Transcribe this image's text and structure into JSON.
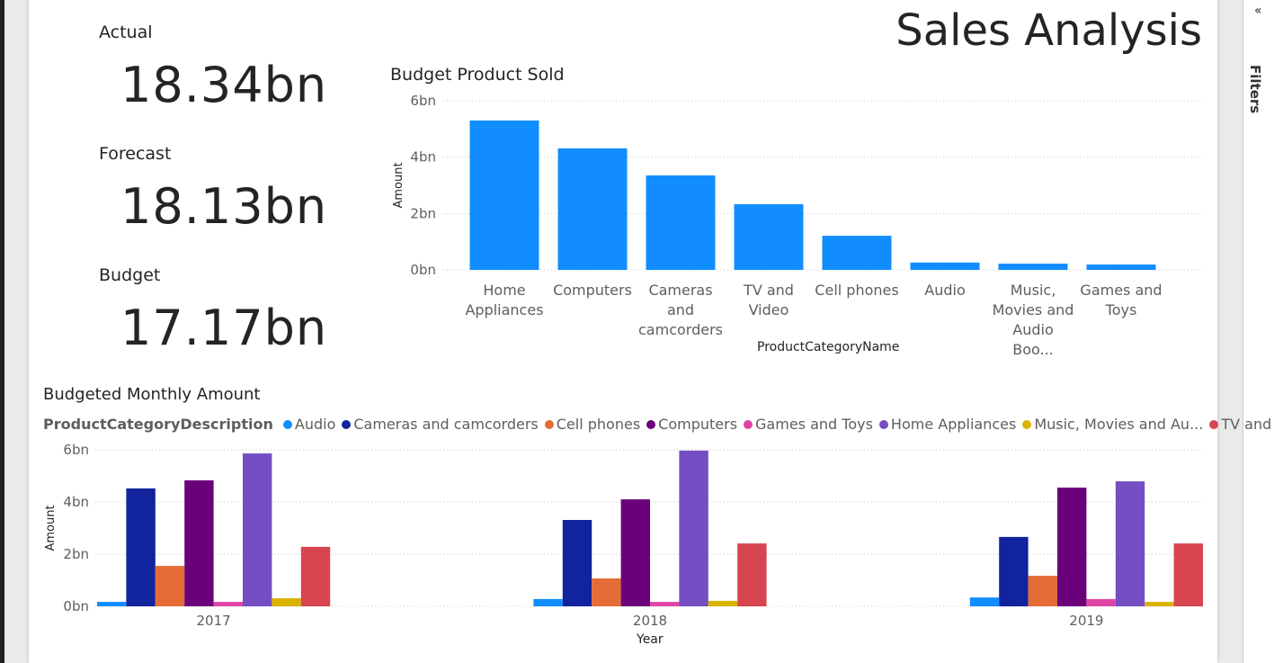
{
  "page_title": "Sales Analysis",
  "filters_label": "Filters",
  "cards": [
    {
      "label": "Actual",
      "value": "18.34bn"
    },
    {
      "label": "Forecast",
      "value": "18.13bn"
    },
    {
      "label": "Budget",
      "value": "17.17bn"
    }
  ],
  "chart_data": [
    {
      "type": "bar",
      "title": "Budget Product Sold",
      "x_label": "ProductCategoryName",
      "y_label": "Amount",
      "categories": [
        "Home Appliances",
        "Computers",
        "Cameras and camcorders",
        "TV and Video",
        "Cell phones",
        "Audio",
        "Music, Movies and Audio Boo...",
        "Games and Toys"
      ],
      "values": [
        5.3,
        4.31,
        3.35,
        2.33,
        1.21,
        0.26,
        0.22,
        0.19
      ],
      "color": "#118DFF",
      "ylim": [
        0,
        6
      ],
      "yticks": [
        {
          "value": 0,
          "label": "0bn"
        },
        {
          "value": 2,
          "label": "2bn"
        },
        {
          "value": 4,
          "label": "4bn"
        },
        {
          "value": 6,
          "label": "6bn"
        }
      ],
      "grid": true
    },
    {
      "type": "grouped_bar",
      "title": "Budgeted Monthly Amount",
      "x_label": "Year",
      "y_label": "Amount",
      "legend_title": "ProductCategoryDescription",
      "categories": [
        "2017",
        "2018",
        "2019"
      ],
      "series": [
        {
          "name": "Audio",
          "color": "#118DFF",
          "values": [
            0.17,
            0.28,
            0.34
          ]
        },
        {
          "name": "Cameras and camcorders",
          "color": "#12239E",
          "values": [
            4.52,
            3.31,
            2.66
          ]
        },
        {
          "name": "Cell phones",
          "color": "#E66C37",
          "values": [
            1.55,
            1.07,
            1.17
          ]
        },
        {
          "name": "Computers",
          "color": "#6B007B",
          "values": [
            4.83,
            4.1,
            4.55
          ]
        },
        {
          "name": "Games and Toys",
          "color": "#E044A7",
          "values": [
            0.17,
            0.17,
            0.28
          ]
        },
        {
          "name": "Home Appliances",
          "color": "#744EC2",
          "values": [
            5.86,
            5.97,
            4.79
          ]
        },
        {
          "name": "Music, Movies and Au...",
          "color": "#D9B300",
          "values": [
            0.31,
            0.21,
            0.17
          ]
        },
        {
          "name": "TV and Video",
          "color": "#D64550",
          "values": [
            2.28,
            2.41,
            2.41
          ]
        }
      ],
      "ylim": [
        0,
        6
      ],
      "yticks": [
        {
          "value": 0,
          "label": "0bn"
        },
        {
          "value": 2,
          "label": "2bn"
        },
        {
          "value": 4,
          "label": "4bn"
        },
        {
          "value": 6,
          "label": "6bn"
        }
      ],
      "grid": true
    }
  ]
}
